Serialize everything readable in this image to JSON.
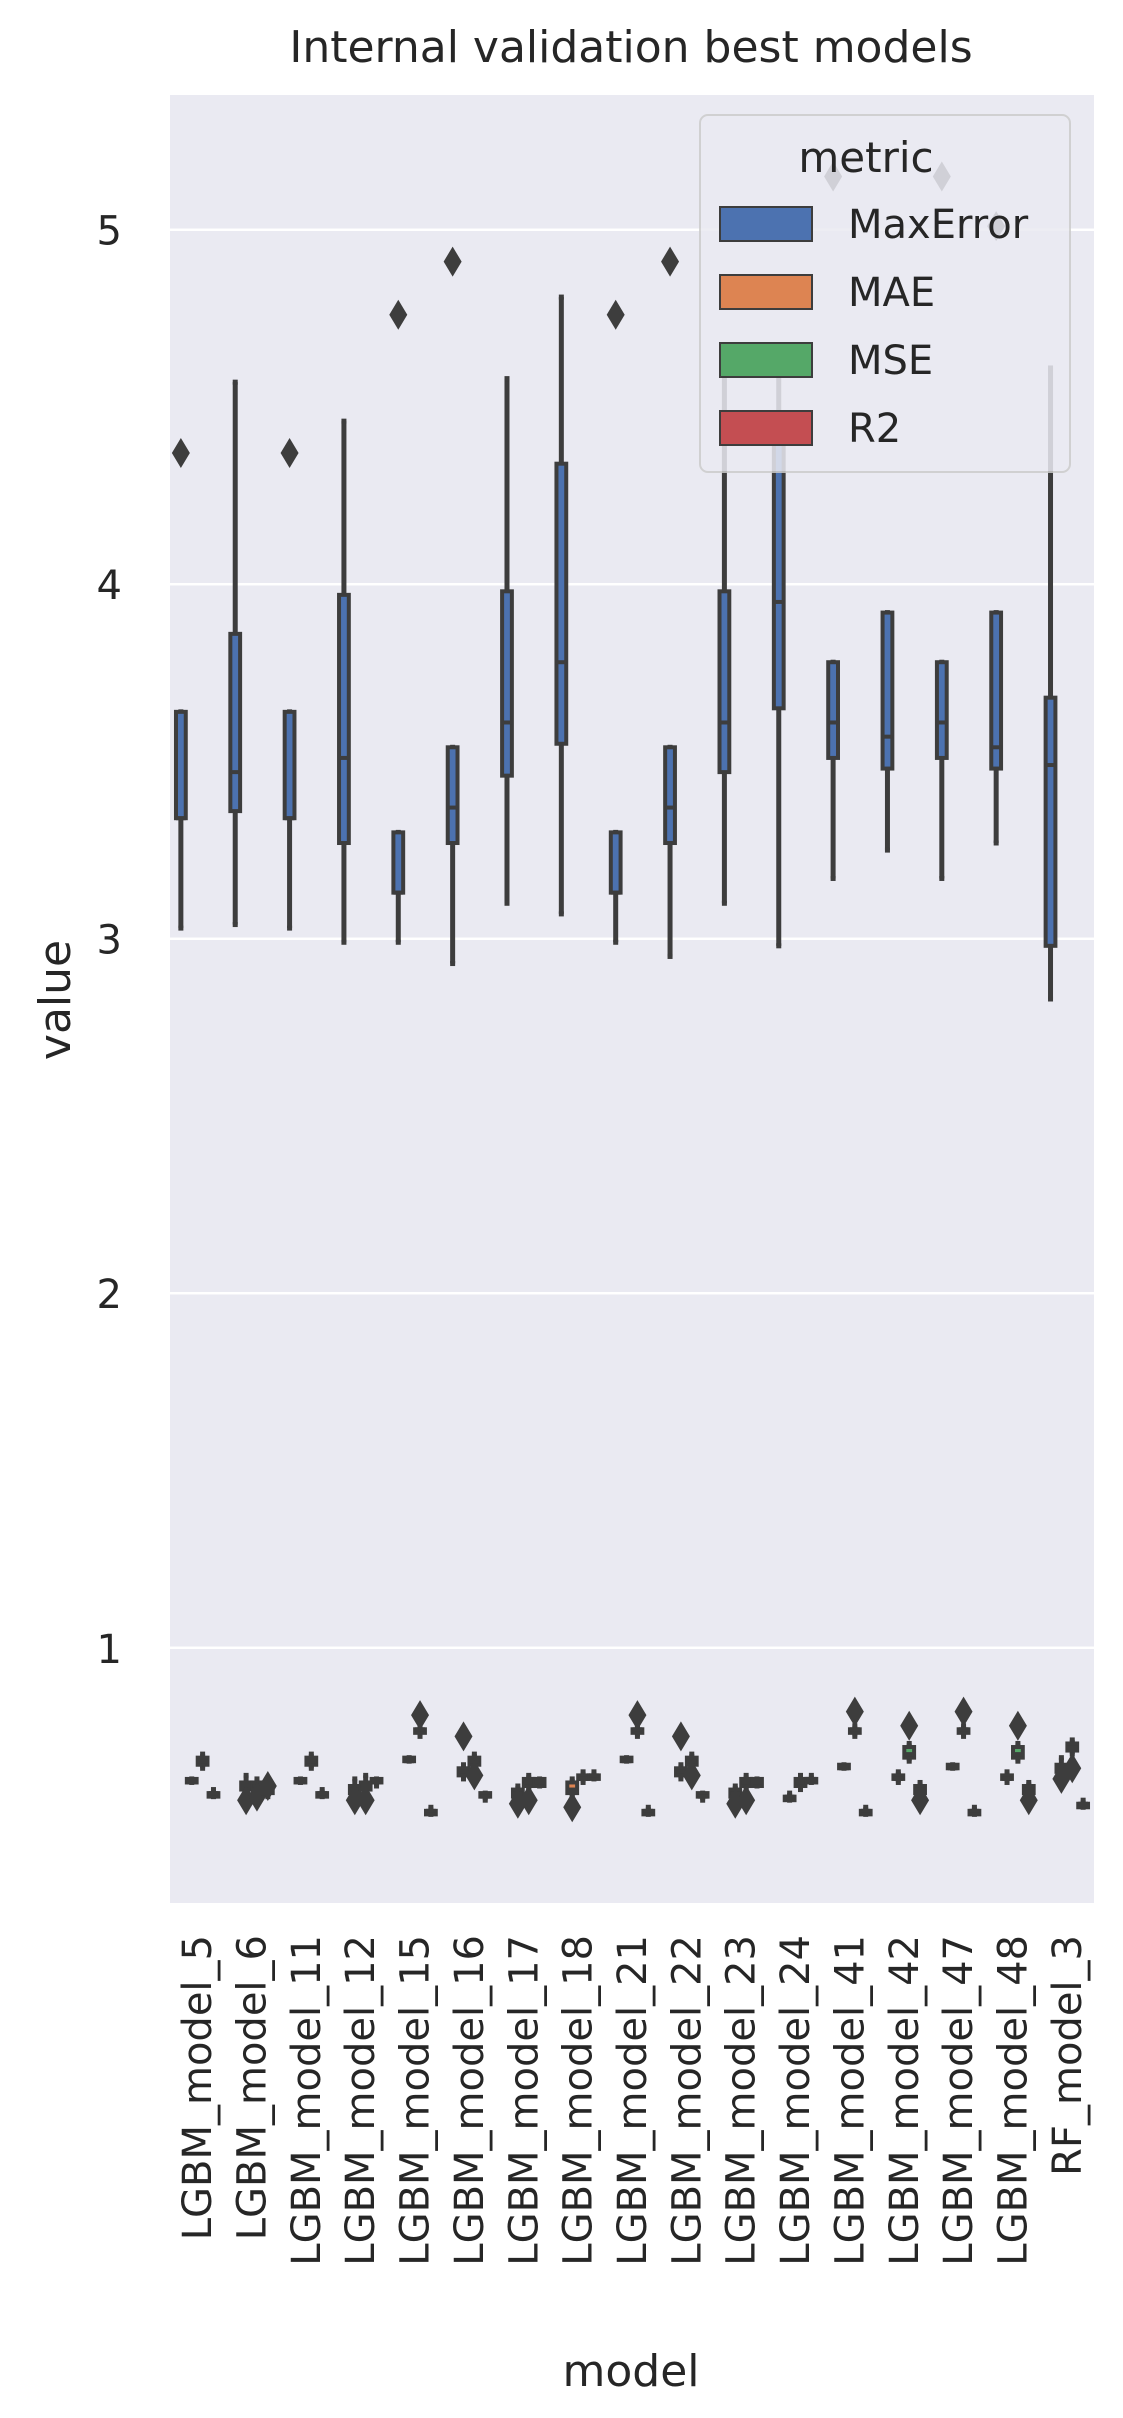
{
  "chart_data": {
    "type": "box",
    "title": "Internal validation best models",
    "xlabel": "model",
    "ylabel": "value",
    "ylim": [
      0.28,
      5.38
    ],
    "yticks": [
      1,
      2,
      3,
      4,
      5
    ],
    "grid": true,
    "legend": {
      "title": "metric",
      "position": "top-right"
    },
    "categories": [
      "LGBM_model_5",
      "LGBM_model_6",
      "LGBM_model_11",
      "LGBM_model_12",
      "LGBM_model_15",
      "LGBM_model_16",
      "LGBM_model_17",
      "LGBM_model_18",
      "LGBM_model_21",
      "LGBM_model_22",
      "LGBM_model_23",
      "LGBM_model_24",
      "LGBM_model_41",
      "LGBM_model_42",
      "LGBM_model_47",
      "LGBM_model_48",
      "RF_model_3"
    ],
    "series": [
      {
        "name": "MaxError",
        "color": "#4c72b0",
        "boxes": [
          {
            "whislo": 3.03,
            "q1": 3.34,
            "med": 3.34,
            "q3": 3.64,
            "whishi": 3.64,
            "fliers": [
              4.37
            ]
          },
          {
            "whislo": 3.04,
            "q1": 3.36,
            "med": 3.47,
            "q3": 3.86,
            "whishi": 4.57,
            "fliers": []
          },
          {
            "whislo": 3.03,
            "q1": 3.34,
            "med": 3.34,
            "q3": 3.64,
            "whishi": 3.64,
            "fliers": [
              4.37
            ]
          },
          {
            "whislo": 2.99,
            "q1": 3.27,
            "med": 3.51,
            "q3": 3.97,
            "whishi": 4.46,
            "fliers": []
          },
          {
            "whislo": 2.99,
            "q1": 3.13,
            "med": 3.13,
            "q3": 3.3,
            "whishi": 3.3,
            "fliers": [
              4.76
            ]
          },
          {
            "whislo": 2.93,
            "q1": 3.27,
            "med": 3.37,
            "q3": 3.54,
            "whishi": 3.54,
            "fliers": [
              4.91
            ]
          },
          {
            "whislo": 3.1,
            "q1": 3.46,
            "med": 3.61,
            "q3": 3.98,
            "whishi": 4.58,
            "fliers": []
          },
          {
            "whislo": 3.07,
            "q1": 3.55,
            "med": 3.78,
            "q3": 4.34,
            "whishi": 4.81,
            "fliers": []
          },
          {
            "whislo": 2.99,
            "q1": 3.13,
            "med": 3.13,
            "q3": 3.3,
            "whishi": 3.3,
            "fliers": [
              4.76
            ]
          },
          {
            "whislo": 2.95,
            "q1": 3.27,
            "med": 3.37,
            "q3": 3.54,
            "whishi": 3.54,
            "fliers": [
              4.91
            ]
          },
          {
            "whislo": 3.1,
            "q1": 3.47,
            "med": 3.61,
            "q3": 3.98,
            "whishi": 4.6,
            "fliers": []
          },
          {
            "whislo": 2.98,
            "q1": 3.65,
            "med": 3.95,
            "q3": 4.4,
            "whishi": 4.65,
            "fliers": []
          },
          {
            "whislo": 3.17,
            "q1": 3.51,
            "med": 3.61,
            "q3": 3.78,
            "whishi": 3.78,
            "fliers": [
              5.15
            ]
          },
          {
            "whislo": 3.25,
            "q1": 3.48,
            "med": 3.57,
            "q3": 3.92,
            "whishi": 3.92,
            "fliers": []
          },
          {
            "whislo": 3.17,
            "q1": 3.51,
            "med": 3.61,
            "q3": 3.78,
            "whishi": 3.78,
            "fliers": [
              5.15
            ]
          },
          {
            "whislo": 3.27,
            "q1": 3.48,
            "med": 3.54,
            "q3": 3.92,
            "whishi": 3.92,
            "fliers": [
              5.01
            ]
          },
          {
            "whislo": 2.83,
            "q1": 2.98,
            "med": 3.49,
            "q3": 3.68,
            "whishi": 4.61,
            "fliers": []
          }
        ]
      },
      {
        "name": "MAE",
        "color": "#dd8452",
        "boxes": [
          {
            "whislo": 0.62,
            "q1": 0.62,
            "med": 0.62,
            "q3": 0.63,
            "whishi": 0.63,
            "fliers": []
          },
          {
            "whislo": 0.6,
            "q1": 0.6,
            "med": 0.61,
            "q3": 0.62,
            "whishi": 0.64,
            "fliers": [
              0.57
            ]
          },
          {
            "whislo": 0.62,
            "q1": 0.62,
            "med": 0.62,
            "q3": 0.63,
            "whishi": 0.63,
            "fliers": []
          },
          {
            "whislo": 0.58,
            "q1": 0.59,
            "med": 0.6,
            "q3": 0.61,
            "whishi": 0.63,
            "fliers": [
              0.57
            ]
          },
          {
            "whislo": 0.68,
            "q1": 0.68,
            "med": 0.68,
            "q3": 0.69,
            "whishi": 0.69,
            "fliers": []
          },
          {
            "whislo": 0.63,
            "q1": 0.64,
            "med": 0.65,
            "q3": 0.66,
            "whishi": 0.67,
            "fliers": [
              0.75
            ]
          },
          {
            "whislo": 0.57,
            "q1": 0.58,
            "med": 0.59,
            "q3": 0.6,
            "whishi": 0.61,
            "fliers": [
              0.56
            ]
          },
          {
            "whislo": 0.58,
            "q1": 0.59,
            "med": 0.6,
            "q3": 0.62,
            "whishi": 0.63,
            "fliers": [
              0.55
            ]
          },
          {
            "whislo": 0.68,
            "q1": 0.68,
            "med": 0.68,
            "q3": 0.69,
            "whishi": 0.69,
            "fliers": []
          },
          {
            "whislo": 0.63,
            "q1": 0.64,
            "med": 0.65,
            "q3": 0.66,
            "whishi": 0.67,
            "fliers": [
              0.75
            ]
          },
          {
            "whislo": 0.57,
            "q1": 0.58,
            "med": 0.59,
            "q3": 0.6,
            "whishi": 0.61,
            "fliers": [
              0.56
            ]
          },
          {
            "whislo": 0.57,
            "q1": 0.57,
            "med": 0.58,
            "q3": 0.58,
            "whishi": 0.59,
            "fliers": []
          },
          {
            "whislo": 0.66,
            "q1": 0.66,
            "med": 0.66,
            "q3": 0.67,
            "whishi": 0.67,
            "fliers": []
          },
          {
            "whislo": 0.62,
            "q1": 0.63,
            "med": 0.63,
            "q3": 0.64,
            "whishi": 0.65,
            "fliers": []
          },
          {
            "whislo": 0.66,
            "q1": 0.66,
            "med": 0.66,
            "q3": 0.67,
            "whishi": 0.67,
            "fliers": []
          },
          {
            "whislo": 0.62,
            "q1": 0.63,
            "med": 0.63,
            "q3": 0.64,
            "whishi": 0.65,
            "fliers": []
          },
          {
            "whislo": 0.64,
            "q1": 0.65,
            "med": 0.66,
            "q3": 0.67,
            "whishi": 0.69,
            "fliers": [
              0.63
            ]
          }
        ]
      },
      {
        "name": "MSE",
        "color": "#55a868",
        "boxes": [
          {
            "whislo": 0.66,
            "q1": 0.67,
            "med": 0.68,
            "q3": 0.69,
            "whishi": 0.7,
            "fliers": []
          },
          {
            "whislo": 0.59,
            "q1": 0.6,
            "med": 0.61,
            "q3": 0.62,
            "whishi": 0.63,
            "fliers": [
              0.58
            ]
          },
          {
            "whislo": 0.66,
            "q1": 0.67,
            "med": 0.68,
            "q3": 0.69,
            "whishi": 0.7,
            "fliers": []
          },
          {
            "whislo": 0.59,
            "q1": 0.6,
            "med": 0.61,
            "q3": 0.62,
            "whishi": 0.64,
            "fliers": [
              0.57
            ]
          },
          {
            "whislo": 0.75,
            "q1": 0.76,
            "med": 0.77,
            "q3": 0.77,
            "whishi": 0.78,
            "fliers": [
              0.81
            ]
          },
          {
            "whislo": 0.66,
            "q1": 0.67,
            "med": 0.68,
            "q3": 0.69,
            "whishi": 0.7,
            "fliers": [
              0.64
            ]
          },
          {
            "whislo": 0.6,
            "q1": 0.61,
            "med": 0.62,
            "q3": 0.63,
            "whishi": 0.64,
            "fliers": [
              0.57
            ]
          },
          {
            "whislo": 0.62,
            "q1": 0.63,
            "med": 0.63,
            "q3": 0.64,
            "whishi": 0.65,
            "fliers": []
          },
          {
            "whislo": 0.75,
            "q1": 0.76,
            "med": 0.77,
            "q3": 0.77,
            "whishi": 0.78,
            "fliers": [
              0.81
            ]
          },
          {
            "whislo": 0.66,
            "q1": 0.67,
            "med": 0.68,
            "q3": 0.69,
            "whishi": 0.7,
            "fliers": [
              0.64
            ]
          },
          {
            "whislo": 0.6,
            "q1": 0.61,
            "med": 0.62,
            "q3": 0.63,
            "whishi": 0.64,
            "fliers": [
              0.57
            ]
          },
          {
            "whislo": 0.6,
            "q1": 0.61,
            "med": 0.62,
            "q3": 0.63,
            "whishi": 0.64,
            "fliers": []
          },
          {
            "whislo": 0.75,
            "q1": 0.76,
            "med": 0.77,
            "q3": 0.77,
            "whishi": 0.78,
            "fliers": [
              0.82
            ]
          },
          {
            "whislo": 0.68,
            "q1": 0.69,
            "med": 0.7,
            "q3": 0.72,
            "whishi": 0.73,
            "fliers": [
              0.78
            ]
          },
          {
            "whislo": 0.75,
            "q1": 0.76,
            "med": 0.77,
            "q3": 0.77,
            "whishi": 0.78,
            "fliers": [
              0.82
            ]
          },
          {
            "whislo": 0.68,
            "q1": 0.69,
            "med": 0.7,
            "q3": 0.72,
            "whishi": 0.73,
            "fliers": [
              0.78
            ]
          },
          {
            "whislo": 0.7,
            "q1": 0.71,
            "med": 0.72,
            "q3": 0.73,
            "whishi": 0.74,
            "fliers": [
              0.66
            ]
          }
        ]
      },
      {
        "name": "R2",
        "color": "#c44e52",
        "boxes": [
          {
            "whislo": 0.58,
            "q1": 0.58,
            "med": 0.59,
            "q3": 0.59,
            "whishi": 0.6,
            "fliers": []
          },
          {
            "whislo": 0.58,
            "q1": 0.59,
            "med": 0.6,
            "q3": 0.61,
            "whishi": 0.62,
            "fliers": [
              0.61
            ]
          },
          {
            "whislo": 0.58,
            "q1": 0.58,
            "med": 0.59,
            "q3": 0.59,
            "whishi": 0.6,
            "fliers": []
          },
          {
            "whislo": 0.61,
            "q1": 0.62,
            "med": 0.62,
            "q3": 0.63,
            "whishi": 0.63,
            "fliers": []
          },
          {
            "whislo": 0.53,
            "q1": 0.53,
            "med": 0.54,
            "q3": 0.54,
            "whishi": 0.55,
            "fliers": []
          },
          {
            "whislo": 0.57,
            "q1": 0.58,
            "med": 0.58,
            "q3": 0.59,
            "whishi": 0.59,
            "fliers": []
          },
          {
            "whislo": 0.61,
            "q1": 0.61,
            "med": 0.62,
            "q3": 0.63,
            "whishi": 0.63,
            "fliers": []
          },
          {
            "whislo": 0.63,
            "q1": 0.63,
            "med": 0.64,
            "q3": 0.64,
            "whishi": 0.65,
            "fliers": []
          },
          {
            "whislo": 0.53,
            "q1": 0.53,
            "med": 0.54,
            "q3": 0.54,
            "whishi": 0.55,
            "fliers": []
          },
          {
            "whislo": 0.57,
            "q1": 0.58,
            "med": 0.58,
            "q3": 0.59,
            "whishi": 0.59,
            "fliers": []
          },
          {
            "whislo": 0.61,
            "q1": 0.61,
            "med": 0.62,
            "q3": 0.63,
            "whishi": 0.63,
            "fliers": []
          },
          {
            "whislo": 0.62,
            "q1": 0.62,
            "med": 0.63,
            "q3": 0.63,
            "whishi": 0.64,
            "fliers": []
          },
          {
            "whislo": 0.53,
            "q1": 0.53,
            "med": 0.54,
            "q3": 0.54,
            "whishi": 0.55,
            "fliers": []
          },
          {
            "whislo": 0.58,
            "q1": 0.59,
            "med": 0.6,
            "q3": 0.61,
            "whishi": 0.62,
            "fliers": [
              0.57
            ]
          },
          {
            "whislo": 0.53,
            "q1": 0.53,
            "med": 0.54,
            "q3": 0.54,
            "whishi": 0.55,
            "fliers": []
          },
          {
            "whislo": 0.58,
            "q1": 0.59,
            "med": 0.6,
            "q3": 0.61,
            "whishi": 0.62,
            "fliers": [
              0.57
            ]
          },
          {
            "whislo": 0.55,
            "q1": 0.55,
            "med": 0.56,
            "q3": 0.56,
            "whishi": 0.57,
            "fliers": []
          }
        ]
      }
    ]
  },
  "style": {
    "plot_background": "#eaeaf2",
    "grid_color": "#ffffff",
    "line_color": "#3d3d3d",
    "text_color": "#262626"
  }
}
